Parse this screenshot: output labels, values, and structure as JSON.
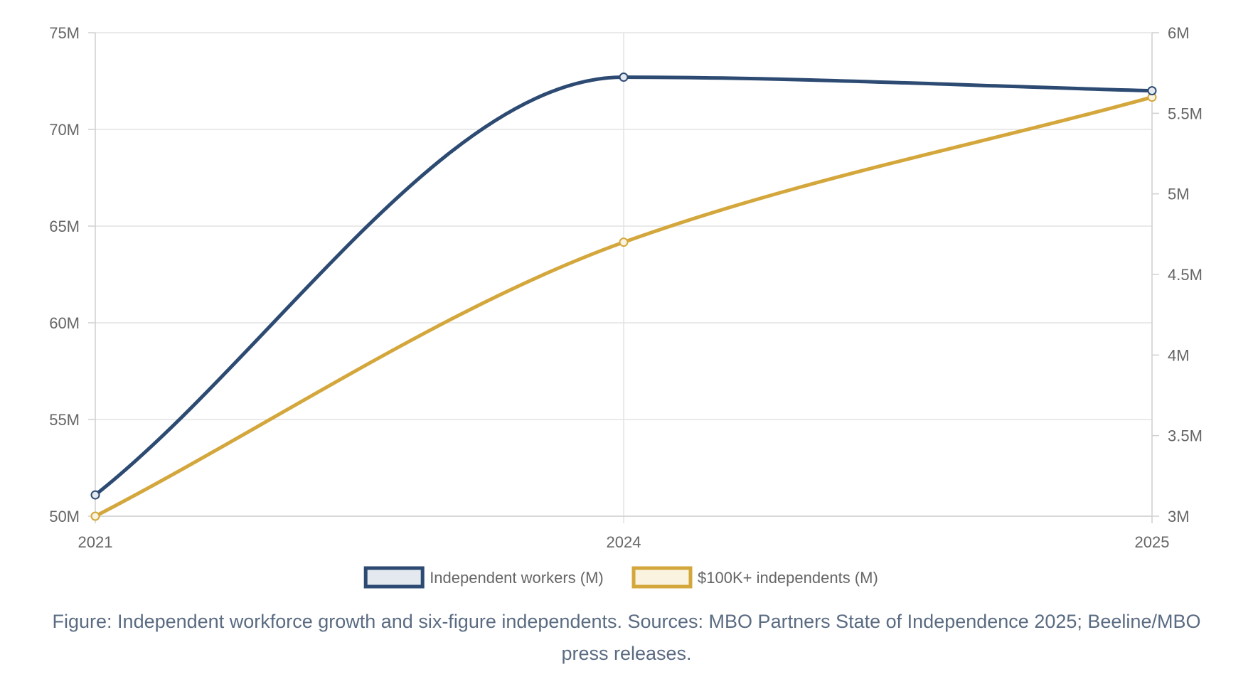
{
  "chart_data": {
    "type": "line",
    "categories": [
      "2021",
      "2024",
      "2025"
    ],
    "y_left": {
      "ticks": [
        50,
        55,
        60,
        65,
        70,
        75
      ],
      "tick_labels": [
        "50M",
        "55M",
        "60M",
        "65M",
        "70M",
        "75M"
      ],
      "ylim": [
        50,
        75
      ]
    },
    "y_right": {
      "ticks": [
        3,
        3.5,
        4,
        4.5,
        5,
        5.5,
        6
      ],
      "tick_labels": [
        "3M",
        "3.5M",
        "4M",
        "4.5M",
        "5M",
        "5.5M",
        "6M"
      ],
      "ylim": [
        3,
        6
      ]
    },
    "series": [
      {
        "name": "Independent workers (M)",
        "axis": "left",
        "values": [
          51.1,
          72.7,
          72.0
        ],
        "color": "#2c4a72",
        "fill": "#e4e8ef"
      },
      {
        "name": "$100K+ independents (M)",
        "axis": "right",
        "values": [
          3.0,
          4.7,
          5.6
        ],
        "color": "#d4a73c",
        "fill": "#faf3e0"
      }
    ],
    "grid": true,
    "legend_position": "bottom"
  },
  "caption": "Figure: Independent workforce growth and six-figure independents. Sources: MBO Partners State of Independence 2025; Beeline/MBO press releases."
}
